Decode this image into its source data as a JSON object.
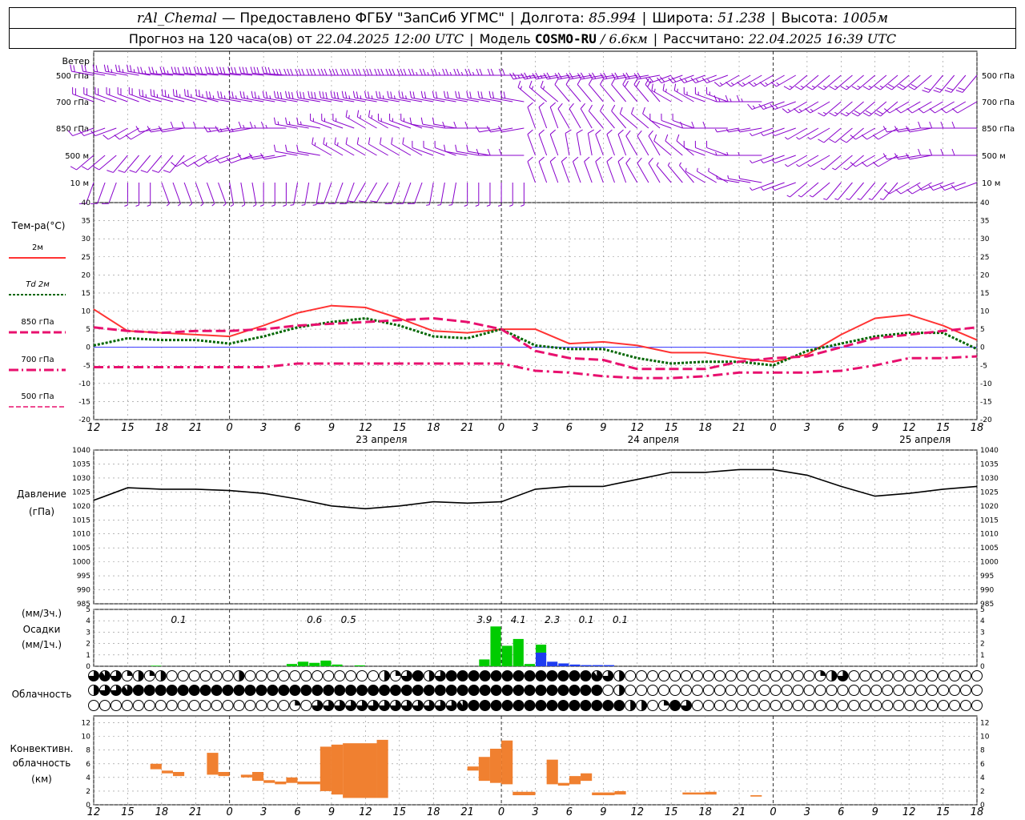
{
  "header": {
    "station": "rAl_Chemal",
    "provider": "— Предоставлено ФГБУ \"ЗапСиб УГМС\"",
    "lon_label": "Долгота:",
    "lon_value": "85.994",
    "lat_label": "Широта:",
    "lat_value": "51.238",
    "alt_label": "Высота:",
    "alt_value": "1005м",
    "forecast_prefix": "Прогноз на 120 часа(ов) от",
    "forecast_start": "22.04.2025 12:00 UTC",
    "model_label": "Модель",
    "model_name": "COSMO-RU",
    "model_res": "/ 6.6км",
    "calc_label": "Рассчитано:",
    "calc_time": "22.04.2025 16:39 UTC"
  },
  "colors": {
    "t2m": "#ff3333",
    "td2m": "#006600",
    "t850": "#e8106e",
    "wind": "#8800cc",
    "pressure": "#000000",
    "precip_rain": "#00cc00",
    "precip_snow": "#1e3cf0",
    "conv": "#f08030",
    "zero_line": "#3333ff",
    "grid": "#8c8c8c"
  },
  "time_axis": {
    "hours": [
      "12",
      "15",
      "18",
      "21",
      "0",
      "3",
      "6",
      "9",
      "12",
      "15",
      "18",
      "21",
      "0",
      "3",
      "6",
      "9",
      "12",
      "15",
      "18",
      "21",
      "0",
      "3",
      "6",
      "9",
      "12",
      "15",
      "18"
    ],
    "day_labels": [
      {
        "label": "23 апреля",
        "at_index": 8
      },
      {
        "label": "24 апреля",
        "at_index": 16
      },
      {
        "label": "25 апреля",
        "at_index": 24
      }
    ]
  },
  "wind_panel": {
    "title": "Ветер",
    "levels": [
      "500 гПа",
      "700 гПа",
      "850 гПа",
      "500 м",
      "10  м"
    ]
  },
  "chart_data": [
    {
      "type": "line",
      "title": "Тем-ра(°C)",
      "y_range": [
        -20,
        40
      ],
      "y_ticks": [
        "-20",
        "-15",
        "-10",
        "-5",
        "0",
        "5",
        "10",
        "15",
        "20",
        "25",
        "30",
        "35",
        "40"
      ],
      "x_hours": [
        0,
        3,
        6,
        9,
        12,
        15,
        18,
        21,
        24,
        27,
        30,
        33,
        36,
        39,
        42,
        45,
        48,
        51,
        54,
        57,
        60,
        63,
        66,
        69,
        72,
        75,
        78
      ],
      "series": [
        {
          "name": "2м",
          "values": [
            10.5,
            4.5,
            4.0,
            3.5,
            3.0,
            6.0,
            9.5,
            11.5,
            11.0,
            8.0,
            4.5,
            4.0,
            5.0,
            5.0,
            1.0,
            1.5,
            0.5,
            -1.5,
            -1.5,
            -3.0,
            -4.0,
            -2.0,
            3.5,
            8.0,
            9.0,
            6.0,
            2.0
          ]
        },
        {
          "name": "Td  2м",
          "values": [
            0.5,
            2.5,
            2.0,
            2.0,
            1.0,
            3.0,
            5.5,
            7.0,
            8.0,
            6.0,
            3.0,
            2.5,
            5.0,
            0.5,
            -0.5,
            -0.5,
            -3.0,
            -4.5,
            -4.0,
            -4.0,
            -5.0,
            -1.0,
            1.0,
            3.0,
            4.0,
            4.0,
            -0.5
          ]
        },
        {
          "name": "850 гПа",
          "values": [
            5.5,
            4.5,
            4.0,
            4.5,
            4.5,
            5.0,
            6.0,
            6.5,
            7.0,
            7.5,
            8.0,
            7.0,
            5.0,
            -1.0,
            -3.0,
            -3.5,
            -6.0,
            -6.0,
            -6.0,
            -4.0,
            -3.0,
            -2.5,
            0.0,
            2.5,
            3.5,
            4.5,
            5.5
          ]
        },
        {
          "name": "700 гПа",
          "values": [
            -5.5,
            -5.5,
            -5.5,
            -5.5,
            -5.5,
            -5.5,
            -4.5,
            -4.5,
            -4.5,
            -4.5,
            -4.5,
            -4.5,
            -4.5,
            -6.5,
            -7.0,
            -8.0,
            -8.5,
            -8.5,
            -8.0,
            -7.0,
            -7.0,
            -7.0,
            -6.5,
            -5.0,
            -3.0,
            -3.0,
            -2.5
          ]
        },
        {
          "name": "500 гПа",
          "values": []
        }
      ]
    },
    {
      "type": "line",
      "title": "Давление",
      "unit": "(гПа)",
      "y_range": [
        985,
        1040
      ],
      "y_ticks": [
        "985",
        "990",
        "995",
        "1000",
        "1005",
        "1010",
        "1015",
        "1020",
        "1025",
        "1030",
        "1035",
        "1040"
      ],
      "x_hours": [
        0,
        3,
        6,
        9,
        12,
        15,
        18,
        21,
        24,
        27,
        30,
        33,
        36,
        39,
        42,
        45,
        48,
        51,
        54,
        57,
        60,
        63,
        66,
        69,
        72,
        75,
        78
      ],
      "series": [
        {
          "name": "",
          "values": [
            1022,
            1026.5,
            1026,
            1026,
            1025.5,
            1024.5,
            1022.5,
            1020,
            1019,
            1020,
            1021.5,
            1021,
            1021.5,
            1026,
            1027,
            1027,
            1029.5,
            1032,
            1032,
            1033,
            1033,
            1031,
            1027,
            1023.5,
            1024.5,
            1026,
            1027
          ]
        }
      ]
    },
    {
      "type": "bar",
      "title": "Осадки",
      "unit_top": "(мм/3ч.)",
      "unit_bottom": "(мм/1ч.)",
      "y_range": [
        0,
        5
      ],
      "y_ticks": [
        "0",
        "1",
        "2",
        "3",
        "4",
        "5"
      ],
      "hourly_rain": [
        {
          "h": 6,
          "v": 0.05
        },
        {
          "h": 18,
          "v": 0.2
        },
        {
          "h": 19,
          "v": 0.4
        },
        {
          "h": 20,
          "v": 0.3
        },
        {
          "h": 21,
          "v": 0.5
        },
        {
          "h": 22,
          "v": 0.15
        },
        {
          "h": 24,
          "v": 0.08
        },
        {
          "h": 35,
          "v": 0.6
        },
        {
          "h": 36,
          "v": 3.5
        },
        {
          "h": 37,
          "v": 1.8
        },
        {
          "h": 38,
          "v": 2.4
        },
        {
          "h": 39,
          "v": 0.2
        }
      ],
      "hourly_snow": [
        {
          "h": 40,
          "v": 1.2
        },
        {
          "h": 41,
          "v": 0.4
        },
        {
          "h": 42,
          "v": 0.25
        },
        {
          "h": 43,
          "v": 0.15
        },
        {
          "h": 44,
          "v": 0.1
        },
        {
          "h": 45,
          "v": 0.1
        },
        {
          "h": 46,
          "v": 0.1
        }
      ],
      "hourly_rain_stacked_on_snow": [
        {
          "h": 40,
          "v": 0.7
        }
      ],
      "labels_3h": [
        {
          "h": 7.5,
          "label": "0.1"
        },
        {
          "h": 19.5,
          "label": "0.6"
        },
        {
          "h": 22.5,
          "label": "0.5"
        },
        {
          "h": 34.5,
          "label": "3.9"
        },
        {
          "h": 37.5,
          "label": "4.1"
        },
        {
          "h": 40.5,
          "label": "2.3"
        },
        {
          "h": 43.5,
          "label": "0.1"
        },
        {
          "h": 46.5,
          "label": "0.1"
        }
      ]
    },
    {
      "type": "table",
      "title": "Облачность",
      "note": "cloud cover symbols, 3 rows (upper/middle/lower) at hourly steps, fraction 0..1",
      "rows": [
        [
          0.75,
          0.9,
          0.75,
          0.25,
          0.5,
          0.25,
          0.5,
          0,
          0,
          0,
          0,
          0,
          0,
          0.5,
          0,
          0,
          0,
          0,
          0,
          0,
          0,
          0,
          0,
          0,
          0,
          0,
          0.5,
          0.25,
          0.75,
          1,
          0.5,
          0.75,
          1,
          1,
          1,
          1,
          1,
          1,
          1,
          1,
          1,
          1,
          1,
          1,
          1,
          0.9,
          0.75,
          0.5,
          0,
          0,
          0,
          0,
          0,
          0,
          0,
          0,
          0,
          0,
          0,
          0,
          0,
          0,
          0,
          0,
          0,
          0.25,
          0.5,
          0.75,
          0,
          0,
          0,
          0,
          0,
          0,
          0,
          0,
          0,
          0,
          0,
          0
        ],
        [
          0.5,
          0.75,
          0.75,
          0.9,
          1,
          1,
          1,
          1,
          1,
          1,
          1,
          1,
          1,
          1,
          1,
          1,
          1,
          1,
          1,
          1,
          1,
          1,
          1,
          1,
          1,
          1,
          1,
          1,
          1,
          1,
          1,
          1,
          1,
          1,
          1,
          1,
          1,
          1,
          1,
          1,
          1,
          1,
          1,
          1,
          1,
          1,
          0,
          0.5,
          0,
          0,
          0,
          0,
          0,
          0,
          0,
          0,
          0,
          0,
          0,
          0,
          0,
          0,
          0,
          0,
          0,
          0,
          0,
          0,
          0,
          0,
          0,
          0,
          0,
          0,
          0,
          0,
          0,
          0,
          0,
          0
        ],
        [
          0,
          0,
          0,
          0,
          0,
          0,
          0,
          0,
          0,
          0,
          0,
          0,
          0,
          0,
          0,
          0,
          0,
          0,
          0.25,
          0,
          0.75,
          0.75,
          0.75,
          0.75,
          0.75,
          0.75,
          0.75,
          0.75,
          0.75,
          0.75,
          0.75,
          0.75,
          0.75,
          0.9,
          1,
          1,
          1,
          1,
          1,
          1,
          1,
          1,
          1,
          1,
          1,
          1,
          1,
          1,
          0.5,
          0.5,
          0,
          0.25,
          1,
          0.75,
          0,
          0,
          0,
          0,
          0,
          0,
          0,
          0,
          0,
          0,
          0,
          0,
          0,
          0,
          0,
          0,
          0,
          0,
          0,
          0,
          0,
          0,
          0,
          0,
          0,
          0
        ]
      ]
    },
    {
      "type": "bar",
      "title": "Конвективн.",
      "title2": "облачность",
      "unit": "(км)",
      "y_range": [
        0,
        13
      ],
      "y_ticks": [
        "0",
        "2",
        "4",
        "6",
        "8",
        "10",
        "12"
      ],
      "bars": [
        {
          "h0": 5,
          "h1": 6,
          "b": 5.2,
          "t": 6.0
        },
        {
          "h0": 6,
          "h1": 7,
          "b": 4.6,
          "t": 5.0
        },
        {
          "h0": 7,
          "h1": 8,
          "b": 4.2,
          "t": 4.8
        },
        {
          "h0": 10,
          "h1": 11,
          "b": 4.4,
          "t": 7.6
        },
        {
          "h0": 11,
          "h1": 12,
          "b": 4.2,
          "t": 4.8
        },
        {
          "h0": 13,
          "h1": 14,
          "b": 4.0,
          "t": 4.4
        },
        {
          "h0": 14,
          "h1": 15,
          "b": 3.5,
          "t": 4.8
        },
        {
          "h0": 15,
          "h1": 16,
          "b": 3.2,
          "t": 3.6
        },
        {
          "h0": 16,
          "h1": 17,
          "b": 3.0,
          "t": 3.4
        },
        {
          "h0": 17,
          "h1": 18,
          "b": 3.2,
          "t": 4.0
        },
        {
          "h0": 18,
          "h1": 20,
          "b": 3.0,
          "t": 3.4
        },
        {
          "h0": 20,
          "h1": 21,
          "b": 2.0,
          "t": 8.5
        },
        {
          "h0": 21,
          "h1": 22,
          "b": 1.5,
          "t": 8.8
        },
        {
          "h0": 22,
          "h1": 25,
          "b": 1.0,
          "t": 9.0
        },
        {
          "h0": 25,
          "h1": 26,
          "b": 1.0,
          "t": 9.5
        },
        {
          "h0": 33,
          "h1": 34,
          "b": 5.0,
          "t": 5.6
        },
        {
          "h0": 34,
          "h1": 35,
          "b": 3.5,
          "t": 7.0
        },
        {
          "h0": 35,
          "h1": 36,
          "b": 3.2,
          "t": 8.2
        },
        {
          "h0": 36,
          "h1": 37,
          "b": 3.0,
          "t": 9.4
        },
        {
          "h0": 37,
          "h1": 39,
          "b": 1.4,
          "t": 1.9
        },
        {
          "h0": 40,
          "h1": 41,
          "b": 3.0,
          "t": 6.6
        },
        {
          "h0": 41,
          "h1": 42,
          "b": 2.8,
          "t": 3.2
        },
        {
          "h0": 42,
          "h1": 43,
          "b": 3.0,
          "t": 4.2
        },
        {
          "h0": 43,
          "h1": 44,
          "b": 3.5,
          "t": 4.6
        },
        {
          "h0": 44,
          "h1": 46,
          "b": 1.4,
          "t": 1.8
        },
        {
          "h0": 46,
          "h1": 47,
          "b": 1.5,
          "t": 2.0
        },
        {
          "h0": 52,
          "h1": 54,
          "b": 1.5,
          "t": 1.8
        },
        {
          "h0": 54,
          "h1": 55,
          "b": 1.5,
          "t": 1.9
        },
        {
          "h0": 58,
          "h1": 59,
          "b": 1.2,
          "t": 1.4
        }
      ]
    },
    {
      "type": "scatter",
      "title": "Ветер",
      "note": "wind barbs per level; dir in degrees (from), speed in m/s, sampled at 3h steps",
      "levels": [
        "500 гПа",
        "700 гПа",
        "850 гПа",
        "500 м",
        "10  м"
      ],
      "x_hours": [
        0,
        3,
        6,
        9,
        12,
        15,
        18,
        21,
        24,
        27,
        30,
        33,
        36,
        39,
        42,
        45,
        48,
        51,
        54,
        57,
        60,
        63,
        66,
        69,
        72,
        75,
        78
      ],
      "dir": [
        [
          280,
          280,
          275,
          275,
          275,
          275,
          270,
          270,
          270,
          270,
          270,
          270,
          270,
          260,
          260,
          260,
          260,
          250,
          250,
          240,
          240,
          230,
          230,
          230,
          230,
          220,
          220
        ],
        [
          290,
          290,
          285,
          285,
          280,
          280,
          280,
          280,
          280,
          280,
          280,
          280,
          280,
          310,
          320,
          320,
          320,
          300,
          290,
          270,
          250,
          240,
          230,
          230,
          240,
          240,
          240
        ],
        [
          250,
          240,
          260,
          270,
          260,
          270,
          280,
          290,
          300,
          290,
          280,
          270,
          260,
          340,
          330,
          320,
          310,
          290,
          270,
          260,
          250,
          240,
          230,
          240,
          260,
          270,
          270
        ],
        [
          230,
          220,
          220,
          240,
          250,
          260,
          280,
          300,
          300,
          300,
          290,
          280,
          270,
          340,
          350,
          340,
          330,
          310,
          290,
          270,
          250,
          240,
          230,
          240,
          260,
          270,
          270
        ],
        [
          200,
          180,
          160,
          160,
          170,
          180,
          190,
          200,
          210,
          200,
          190,
          180,
          180,
          340,
          340,
          340,
          330,
          320,
          300,
          280,
          250,
          230,
          220,
          220,
          240,
          250,
          250
        ]
      ],
      "speed": [
        [
          20,
          22,
          23,
          24,
          25,
          25,
          26,
          26,
          25,
          24,
          23,
          22,
          21,
          18,
          16,
          15,
          14,
          14,
          13,
          13,
          12,
          12,
          12,
          13,
          14,
          15,
          15
        ],
        [
          15,
          16,
          17,
          18,
          18,
          18,
          19,
          19,
          18,
          17,
          16,
          15,
          14,
          12,
          11,
          10,
          9,
          8,
          8,
          7,
          7,
          7,
          8,
          9,
          10,
          11,
          11
        ],
        [
          5,
          4,
          5,
          6,
          7,
          7,
          8,
          8,
          7,
          7,
          6,
          5,
          5,
          6,
          6,
          6,
          5,
          4,
          4,
          3,
          3,
          3,
          4,
          4,
          5,
          6,
          6
        ],
        [
          5,
          4,
          5,
          5,
          6,
          6,
          6,
          7,
          6,
          6,
          5,
          5,
          5,
          6,
          6,
          5,
          5,
          4,
          4,
          3,
          3,
          3,
          3,
          4,
          4,
          5,
          5
        ],
        [
          4,
          3,
          3,
          3,
          3,
          3,
          3,
          4,
          4,
          4,
          3,
          3,
          3,
          5,
          5,
          5,
          4,
          3,
          3,
          2,
          2,
          2,
          3,
          3,
          4,
          4,
          4
        ]
      ]
    }
  ]
}
